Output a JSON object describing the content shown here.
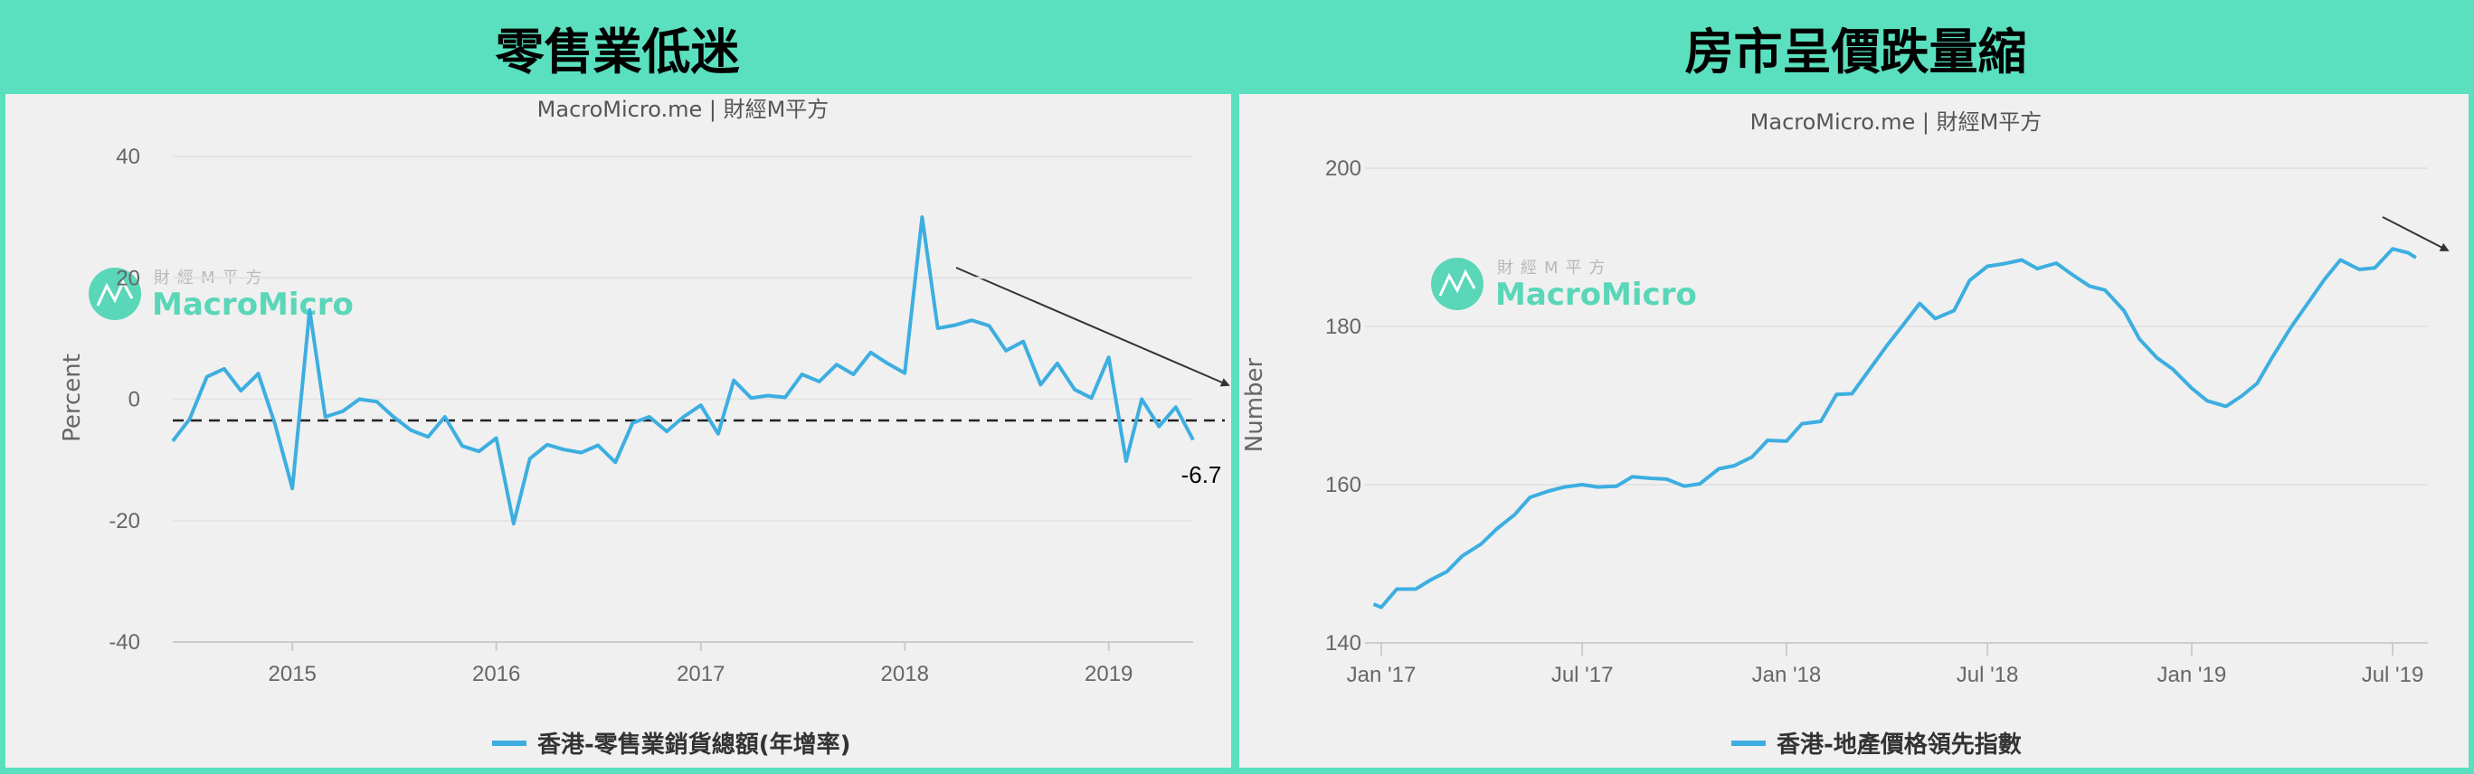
{
  "colors": {
    "frame": "#5ae0bf",
    "panel": "#f0f0f0",
    "line": "#3daee0",
    "grid": "#e3e3e3",
    "arrow": "#333333"
  },
  "left": {
    "header": "零售業低迷",
    "watermark": {
      "small": "財經M平方",
      "brand": "MacroMicro"
    }
  },
  "right": {
    "header": "房市呈價跌量縮",
    "watermark": {
      "small": "財經M平方",
      "brand": "MacroMicro"
    }
  },
  "chart_data": [
    {
      "type": "line",
      "subtitle": "MacroMicro.me | 財經M平方",
      "ylabel": "Percent",
      "ylim": [
        -40,
        40
      ],
      "yticks": [
        "40",
        "20",
        "0",
        "-20",
        "-40"
      ],
      "xticks": [
        "2015",
        "2016",
        "2017",
        "2018",
        "2019"
      ],
      "grid": true,
      "legend_position": "bottom",
      "reference_line": {
        "style": "dashed",
        "value": -3.5
      },
      "last_value_label": "-6.7",
      "trend_arrow": "down",
      "series": [
        {
          "name": "香港-零售業銷貨總額(年增率)",
          "x": [
            "2014-06",
            "2014-07",
            "2014-08",
            "2014-09",
            "2014-10",
            "2014-11",
            "2014-12",
            "2015-01",
            "2015-02",
            "2015-03",
            "2015-04",
            "2015-05",
            "2015-06",
            "2015-07",
            "2015-08",
            "2015-09",
            "2015-10",
            "2015-11",
            "2015-12",
            "2016-01",
            "2016-02",
            "2016-03",
            "2016-04",
            "2016-05",
            "2016-06",
            "2016-07",
            "2016-08",
            "2016-09",
            "2016-10",
            "2016-11",
            "2016-12",
            "2017-01",
            "2017-02",
            "2017-03",
            "2017-04",
            "2017-05",
            "2017-06",
            "2017-07",
            "2017-08",
            "2017-09",
            "2017-10",
            "2017-11",
            "2017-12",
            "2018-01",
            "2018-02",
            "2018-03",
            "2018-04",
            "2018-05",
            "2018-06",
            "2018-07",
            "2018-08",
            "2018-09",
            "2018-10",
            "2018-11",
            "2018-12",
            "2019-01",
            "2019-02",
            "2019-03",
            "2019-04",
            "2019-05",
            "2019-06"
          ],
          "values": [
            -6.9,
            -3.3,
            3.7,
            5.0,
            1.4,
            4.2,
            -4.1,
            -14.7,
            14.7,
            -2.9,
            -2.0,
            0.0,
            -0.4,
            -2.9,
            -5.1,
            -6.2,
            -2.9,
            -7.7,
            -8.6,
            -6.4,
            -20.5,
            -9.8,
            -7.5,
            -8.3,
            -8.8,
            -7.6,
            -10.4,
            -3.9,
            -2.9,
            -5.3,
            -2.9,
            -1.0,
            -5.7,
            3.1,
            0.2,
            0.6,
            0.3,
            4.1,
            2.9,
            5.7,
            4.1,
            7.7,
            5.9,
            4.3,
            30.0,
            11.7,
            12.2,
            13.0,
            12.1,
            8.0,
            9.5,
            2.4,
            5.9,
            1.6,
            0.2,
            6.9,
            -10.2,
            0.0,
            -4.5,
            -1.3,
            -6.7
          ]
        }
      ]
    },
    {
      "type": "line",
      "subtitle": "MacroMicro.me | 財經M平方",
      "ylabel": "Number",
      "ylim": [
        140,
        200
      ],
      "yticks": [
        "200",
        "180",
        "160",
        "140"
      ],
      "xticks": [
        "Jan '17",
        "Jul '17",
        "Jan '18",
        "Jul '18",
        "Jan '19",
        "Jul '19"
      ],
      "grid": true,
      "legend_position": "bottom",
      "trend_arrow": "down",
      "series": [
        {
          "name": "香港-地產價格領先指數",
          "x": [
            "2016-12-25",
            "2017-01-01",
            "2017-01-15",
            "2017-02-01",
            "2017-02-15",
            "2017-03-01",
            "2017-03-15",
            "2017-04-01",
            "2017-04-15",
            "2017-05-01",
            "2017-05-15",
            "2017-06-01",
            "2017-06-15",
            "2017-07-01",
            "2017-07-15",
            "2017-08-01",
            "2017-08-15",
            "2017-09-01",
            "2017-09-15",
            "2017-10-01",
            "2017-10-15",
            "2017-11-01",
            "2017-11-15",
            "2017-12-01",
            "2017-12-15",
            "2018-01-01",
            "2018-01-15",
            "2018-02-01",
            "2018-02-15",
            "2018-03-01",
            "2018-03-15",
            "2018-04-01",
            "2018-04-15",
            "2018-05-01",
            "2018-05-15",
            "2018-06-01",
            "2018-06-15",
            "2018-07-01",
            "2018-07-15",
            "2018-08-01",
            "2018-08-15",
            "2018-09-01",
            "2018-09-15",
            "2018-10-01",
            "2018-10-15",
            "2018-11-01",
            "2018-11-15",
            "2018-12-01",
            "2018-12-15",
            "2019-01-01",
            "2019-01-15",
            "2019-02-01",
            "2019-02-15",
            "2019-03-01",
            "2019-03-15",
            "2019-04-01",
            "2019-04-15",
            "2019-05-01",
            "2019-05-15",
            "2019-06-01",
            "2019-06-15",
            "2019-07-01",
            "2019-07-15",
            "2019-07-22"
          ],
          "values": [
            144.9,
            144.5,
            146.8,
            146.8,
            148.0,
            149.0,
            151.0,
            152.5,
            154.4,
            156.2,
            158.4,
            159.2,
            159.7,
            160.0,
            159.7,
            159.8,
            161.0,
            160.8,
            160.7,
            159.8,
            160.1,
            162.0,
            162.4,
            163.5,
            165.6,
            165.5,
            167.7,
            168.0,
            171.4,
            171.5,
            174.2,
            177.5,
            180.0,
            182.9,
            181.0,
            182.0,
            185.8,
            187.6,
            187.9,
            188.4,
            187.3,
            188.0,
            186.6,
            185.1,
            184.6,
            182.0,
            178.4,
            176.0,
            174.6,
            172.2,
            170.6,
            169.9,
            171.2,
            172.8,
            176.2,
            180.0,
            182.8,
            186.0,
            188.4,
            187.2,
            187.4,
            189.8,
            189.3,
            188.7
          ]
        }
      ]
    }
  ]
}
